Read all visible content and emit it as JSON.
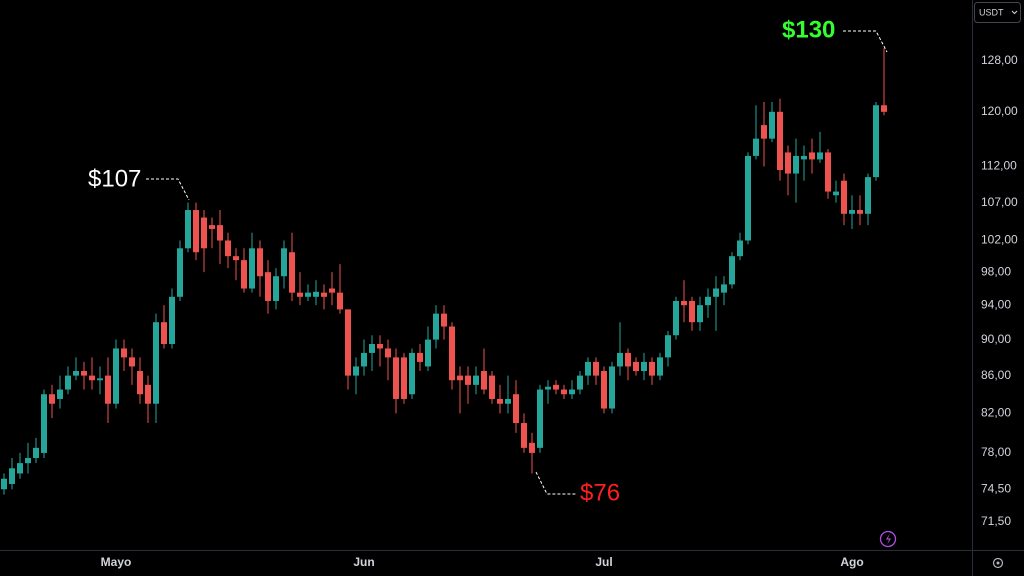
{
  "chart_data": {
    "type": "candlestick",
    "currency": "USDT",
    "log_scale": true,
    "up_color": "#26a69a",
    "down_color": "#ef5350",
    "ylim": [
      69,
      138.2
    ],
    "yticks": [
      {
        "value": 71.5,
        "label": "71,50"
      },
      {
        "value": 74.5,
        "label": "74,50"
      },
      {
        "value": 78,
        "label": "78,00"
      },
      {
        "value": 82,
        "label": "82,00"
      },
      {
        "value": 86,
        "label": "86,00"
      },
      {
        "value": 90,
        "label": "90,00"
      },
      {
        "value": 94,
        "label": "94,00"
      },
      {
        "value": 98,
        "label": "98,00"
      },
      {
        "value": 102,
        "label": "102,00"
      },
      {
        "value": 107,
        "label": "107,00"
      },
      {
        "value": 112,
        "label": "112,00"
      },
      {
        "value": 120,
        "label": "120,00"
      },
      {
        "value": 128,
        "label": "128,00"
      }
    ],
    "categories": [
      null,
      null,
      null,
      null,
      null,
      null,
      null,
      null,
      null,
      null,
      null,
      null,
      null,
      null,
      "Mayo",
      null,
      null,
      null,
      null,
      null,
      null,
      null,
      null,
      null,
      null,
      null,
      null,
      null,
      null,
      null,
      null,
      null,
      null,
      null,
      null,
      null,
      null,
      null,
      null,
      null,
      null,
      null,
      null,
      null,
      null,
      "Jun",
      null,
      null,
      null,
      null,
      null,
      null,
      null,
      null,
      null,
      null,
      null,
      null,
      null,
      null,
      null,
      null,
      null,
      null,
      null,
      null,
      null,
      null,
      null,
      null,
      null,
      null,
      null,
      null,
      null,
      "Jul",
      null,
      null,
      null,
      null,
      null,
      null,
      null,
      null,
      null,
      null,
      null,
      null,
      null,
      null,
      null,
      null,
      null,
      null,
      null,
      null,
      null,
      null,
      null,
      null,
      null,
      null,
      null,
      null,
      null,
      null,
      "Ago",
      null,
      null,
      null,
      null
    ],
    "open": [
      74.5,
      75,
      76,
      77,
      77.5,
      78,
      84,
      83.5,
      84.5,
      86,
      86.5,
      86,
      85.5,
      86,
      83,
      89,
      88,
      86.5,
      85,
      83,
      92,
      89.5,
      95,
      101,
      106,
      105,
      104,
      104,
      102,
      100,
      99.5,
      96,
      101,
      98,
      94.5,
      97.5,
      100.5,
      95.5,
      95,
      95,
      95.5,
      96,
      95.5,
      93.5,
      86,
      87,
      88.5,
      89.5,
      89,
      88,
      88,
      84,
      88.5,
      87,
      90,
      93,
      91.5,
      86,
      86,
      85,
      86.5,
      86,
      83.5,
      83,
      84,
      81,
      79,
      78.5,
      84.5,
      85,
      84.5,
      84,
      84.5,
      86,
      87.5,
      86.5,
      82.5,
      87,
      88.5,
      87.5,
      86.5,
      87.5,
      86,
      88,
      90.5,
      94.5,
      94.5,
      92,
      94,
      95,
      95.5,
      96.5,
      100,
      102,
      113.5,
      118,
      116,
      120,
      114,
      111,
      113,
      114,
      113,
      114,
      108,
      110,
      105.5,
      106,
      105.5,
      110.5,
      121
    ],
    "high": [
      76,
      77.5,
      78,
      79,
      79.5,
      84.5,
      85,
      86,
      87,
      88,
      87.5,
      88,
      87,
      88,
      90,
      90,
      89,
      88,
      86,
      93,
      94,
      96,
      102,
      107,
      107,
      106,
      105,
      106,
      103,
      101,
      101,
      103,
      102,
      99.5,
      98.5,
      102,
      103,
      98,
      96.5,
      97,
      96.5,
      98,
      99,
      93.5,
      88,
      90,
      90.5,
      90.5,
      90,
      89,
      88.5,
      89,
      89.5,
      91.5,
      94,
      94,
      92,
      87,
      87,
      87,
      89,
      86.5,
      85,
      86,
      85.5,
      82,
      80,
      85,
      85.5,
      85.5,
      85,
      85.5,
      86.5,
      88,
      88,
      87,
      87.5,
      92,
      89,
      88,
      88.5,
      88,
      88.5,
      91,
      95,
      97,
      95,
      95,
      96,
      97.5,
      97.5,
      100.5,
      103,
      114,
      121,
      121.5,
      121.5,
      122,
      115,
      116,
      115,
      116,
      117,
      114.5,
      110,
      111,
      108,
      108,
      111,
      121.5,
      130
    ],
    "low": [
      74,
      74.5,
      75.5,
      76,
      77,
      77.5,
      81.5,
      82.5,
      84,
      85.5,
      84.5,
      84.5,
      84,
      81,
      82.5,
      86.5,
      85,
      83,
      81,
      81,
      89,
      89,
      94.5,
      100.5,
      99.5,
      98,
      101,
      99,
      98.5,
      97,
      95.5,
      95.5,
      95,
      93,
      93.5,
      96,
      94.5,
      94,
      94.5,
      94,
      93.5,
      94,
      93,
      84.5,
      84,
      86,
      86.5,
      87,
      85.5,
      82,
      83,
      83.5,
      86.5,
      86.5,
      89,
      90,
      84.5,
      82,
      83,
      84,
      84,
      83,
      82,
      82,
      80,
      78,
      76,
      78,
      83,
      84,
      83.5,
      83.5,
      84,
      85,
      85,
      82,
      82,
      86,
      85.5,
      86,
      85.5,
      85,
      85.5,
      87,
      90,
      92,
      91,
      91,
      92.5,
      91,
      94,
      96,
      99.5,
      101.5,
      113,
      112,
      115.5,
      110,
      108,
      107,
      110,
      111,
      112.5,
      107.5,
      107,
      104,
      103.5,
      104,
      104,
      110,
      119.5
    ],
    "close": [
      75.5,
      76.5,
      77,
      77.5,
      78.5,
      84,
      83,
      84.5,
      86,
      86.5,
      86,
      85.5,
      85.7,
      83,
      89,
      88,
      87,
      84,
      83,
      92,
      89.5,
      95,
      101,
      106,
      100.5,
      101,
      103.5,
      102,
      100,
      99.5,
      96,
      101,
      97.5,
      94.5,
      97.5,
      101,
      95.5,
      95,
      95.5,
      95.6,
      95,
      95.5,
      93.5,
      86,
      87,
      88.5,
      89.5,
      89,
      88,
      83.5,
      83.5,
      88.5,
      87.5,
      90,
      93,
      91.5,
      85.5,
      85.5,
      85,
      86,
      84.5,
      83.5,
      83,
      83.5,
      81,
      78.5,
      78,
      84.5,
      84.8,
      84.5,
      84,
      84.5,
      86,
      87.5,
      86,
      82.5,
      87,
      88.5,
      87,
      86.5,
      87.5,
      86,
      88,
      90.5,
      94.5,
      94,
      92,
      94,
      95,
      96,
      96.5,
      100,
      102,
      113.5,
      116,
      116,
      120,
      111.5,
      111,
      113.5,
      113.5,
      113,
      114,
      108.5,
      108.5,
      105.5,
      106,
      105.5,
      110.5,
      121,
      120
    ],
    "annotations": [
      "$107",
      "$130",
      "$76"
    ],
    "annotation_colors": [
      "#ffffff",
      "#33ff2e",
      "#ff1f1f"
    ]
  }
}
